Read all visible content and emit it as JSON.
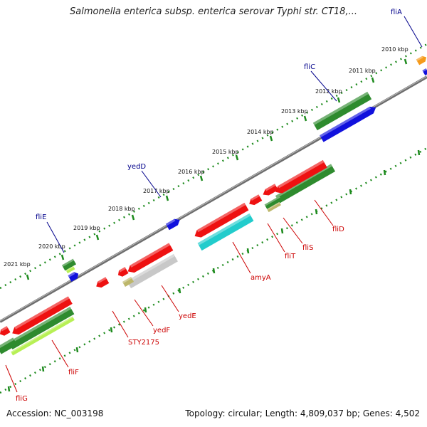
{
  "header": {
    "title": "Salmonella enterica subsp. enterica serovar Typhi str. CT18,..."
  },
  "footer": {
    "accession": "Accession: NC_003198",
    "stats": "Topology: circular; Length: 4,809,037 bp; Genes: 4,502"
  },
  "axis": {
    "kbp_labels": [
      "2010 kbp",
      "2011 kbp",
      "2012 kbp",
      "2013 kbp",
      "2014 kbp",
      "2015 kbp",
      "2016 kbp",
      "2017 kbp",
      "2018 kbp",
      "2019 kbp",
      "2020 kbp",
      "2021 kbp"
    ]
  },
  "genes_top": [
    "fliA",
    "fliC",
    "yedD",
    "fliE"
  ],
  "genes_bottom": [
    "fliD",
    "fliS",
    "fliT",
    "amyA",
    "yedE",
    "yedF",
    "STY2175",
    "fliF",
    "fliG"
  ],
  "colors": {
    "top_label": "#00008b",
    "bottom_label": "#cc0000",
    "red": "#ee1111",
    "blue": "#1111dd",
    "green": "#2e8b2e",
    "lightgreen": "#b7f055",
    "cyan": "#22cccc",
    "gray": "#c8c8c8",
    "orange": "#f59a1a",
    "khaki": "#bdb76b"
  }
}
